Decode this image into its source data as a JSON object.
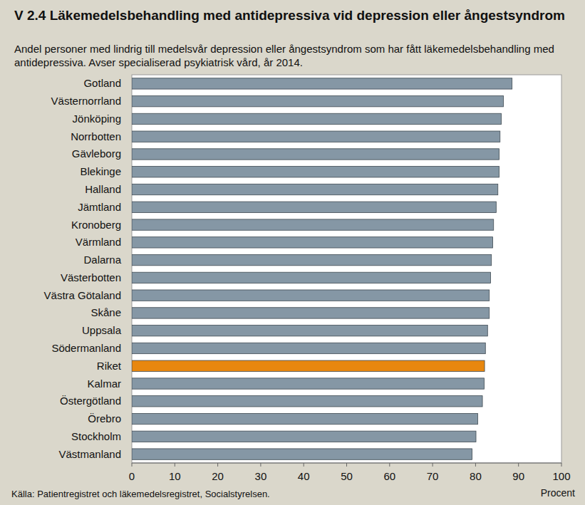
{
  "chart_data": {
    "type": "bar",
    "orientation": "horizontal",
    "title": "V 2.4 Läkemedelsbehandling med antidepressiva vid depression eller ångestsyndrom",
    "subtitle": "Andel personer med  lindrig till medelsvår depression eller ångestsyndrom som har fått läkemedelsbehandling med antidepressiva. Avser specialiserad psykiatrisk vård, år 2014.",
    "xlabel": "Procent",
    "source": "Källa: Patientregistret och läkemedelsregistret, Socialstyrelsen.",
    "categories": [
      "Gotland",
      "Västernorrland",
      "Jönköping",
      "Norrbotten",
      "Gävleborg",
      "Blekinge",
      "Halland",
      "Jämtland",
      "Kronoberg",
      "Värmland",
      "Dalarna",
      "Västerbotten",
      "Västra Götaland",
      "Skåne",
      "Uppsala",
      "Södermanland",
      "Riket",
      "Kalmar",
      "Östergötland",
      "Örebro",
      "Stockholm",
      "Västmanland"
    ],
    "values": [
      88.5,
      86.5,
      86.0,
      85.7,
      85.5,
      85.5,
      85.2,
      84.8,
      84.2,
      84.0,
      83.7,
      83.5,
      83.2,
      83.2,
      82.8,
      82.3,
      82.1,
      82.0,
      81.6,
      80.5,
      80.1,
      79.2
    ],
    "colors": [
      "#8597a5",
      "#8597a5",
      "#8597a5",
      "#8597a5",
      "#8597a5",
      "#8597a5",
      "#8597a5",
      "#8597a5",
      "#8597a5",
      "#8597a5",
      "#8597a5",
      "#8597a5",
      "#8597a5",
      "#8597a5",
      "#8597a5",
      "#8597a5",
      "#e8870e",
      "#8597a5",
      "#8597a5",
      "#8597a5",
      "#8597a5",
      "#8597a5"
    ],
    "xlim": [
      0,
      100
    ],
    "xticks": [
      0,
      10,
      20,
      30,
      40,
      50,
      60,
      70,
      80,
      90,
      100
    ],
    "grid": false
  }
}
